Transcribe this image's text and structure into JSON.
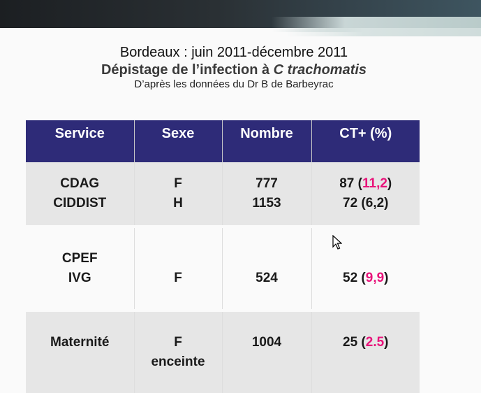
{
  "title": {
    "line1": "Bordeaux : juin 2011-décembre 2011",
    "line2_prefix": "Dépistage de l’infection à ",
    "line2_italic": "C trachomatis",
    "line3": "D’après les données du Dr B de Barbeyrac"
  },
  "table": {
    "headers": [
      "Service",
      "Sexe",
      "Nombre",
      "CT+ (%)"
    ],
    "rows": [
      {
        "service": [
          "CDAG",
          "CIDDIST"
        ],
        "sexe": [
          "F",
          "H"
        ],
        "nombre": [
          "777",
          "1153"
        ],
        "ct": [
          {
            "count": "87",
            "pct": "11,2",
            "highlight": true
          },
          {
            "count": "72",
            "pct": "6,2",
            "highlight": false
          }
        ]
      },
      {
        "service": [
          "CPEF",
          "IVG"
        ],
        "sexe": [
          "F"
        ],
        "nombre": [
          "524"
        ],
        "ct": [
          {
            "count": "52",
            "pct": "9,9",
            "highlight": true
          }
        ]
      },
      {
        "service": [
          "Maternité"
        ],
        "sexe": [
          "F",
          "enceinte"
        ],
        "nombre": [
          "1004"
        ],
        "ct": [
          {
            "count": "25",
            "pct": "2.5",
            "highlight": true
          }
        ]
      }
    ]
  },
  "colors": {
    "header_bg": "#2e2b78",
    "highlight": "#e8137a",
    "row_shade": "#e6e6e6"
  }
}
